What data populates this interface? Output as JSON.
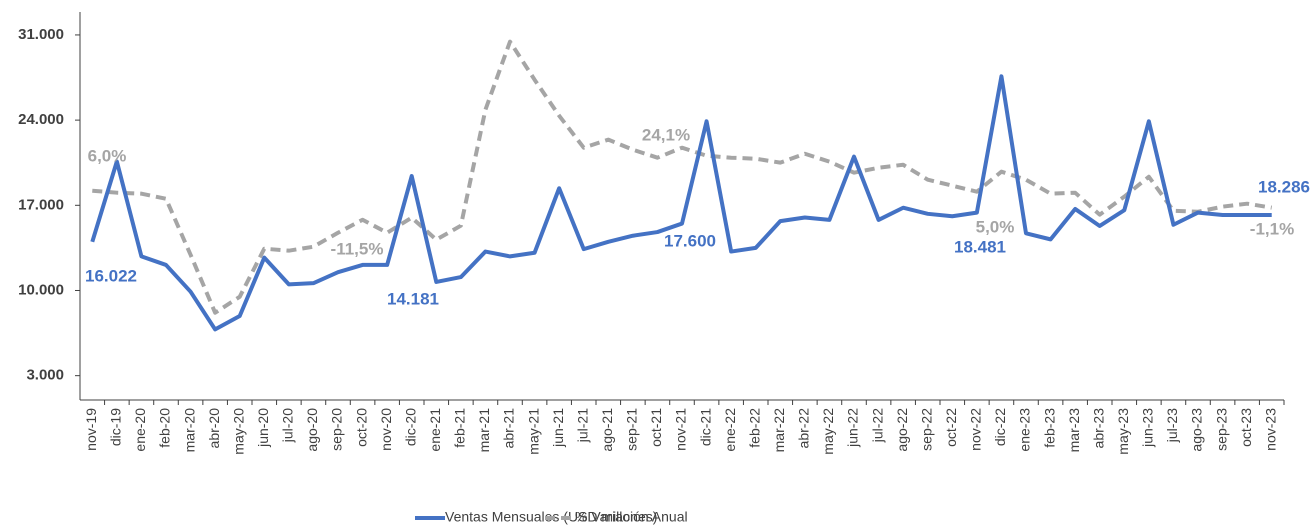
{
  "chart_data": {
    "type": "line",
    "categories": [
      "nov-19",
      "dic-19",
      "ene-20",
      "feb-20",
      "mar-20",
      "abr-20",
      "may-20",
      "jun-20",
      "jul-20",
      "ago-20",
      "sep-20",
      "oct-20",
      "nov-20",
      "dic-20",
      "ene-21",
      "feb-21",
      "mar-21",
      "abr-21",
      "may-21",
      "jun-21",
      "jul-21",
      "ago-21",
      "sep-21",
      "oct-21",
      "nov-21",
      "dic-21",
      "ene-22",
      "feb-22",
      "mar-22",
      "abr-22",
      "may-22",
      "jun-22",
      "jul-22",
      "ago-22",
      "sep-22",
      "oct-22",
      "nov-22",
      "dic-22",
      "ene-23",
      "feb-23",
      "mar-23",
      "abr-23",
      "may-23",
      "jun-23",
      "jul-23",
      "ago-23",
      "sep-23",
      "oct-23",
      "nov-23"
    ],
    "series": [
      {
        "name": "Ventas Mensuales (USD millones)",
        "color": "#4472c4",
        "dash": false,
        "values": [
          14000,
          20600,
          12800,
          12100,
          9900,
          6800,
          7900,
          12700,
          10500,
          10600,
          11500,
          12100,
          12100,
          19400,
          10700,
          11100,
          13200,
          12800,
          13100,
          18400,
          13400,
          14000,
          14500,
          14800,
          15500,
          23900,
          13200,
          13500,
          15700,
          16000,
          15800,
          21000,
          15800,
          16800,
          16300,
          16100,
          16400,
          27600,
          14700,
          14200,
          16700,
          15300,
          16600,
          23900,
          15400,
          16400,
          16200,
          16200,
          16200
        ]
      },
      {
        "name": "% Variación Anual",
        "color": "#a5a5a5",
        "dash": true,
        "axis": "y2",
        "values": [
          -10.7,
          -12.3,
          -13.1,
          -17.2,
          -62.5,
          -109.4,
          -96.5,
          -57.6,
          -59.2,
          -56.0,
          -44.7,
          -34.2,
          -44.7,
          -32.5,
          -50.3,
          -39.0,
          54.8,
          109.9,
          79.1,
          50.0,
          24.1,
          30.6,
          22.5,
          16.0,
          24.1,
          17.6,
          16.0,
          15.2,
          12.0,
          19.2,
          12.8,
          3.9,
          7.9,
          10.3,
          -1.8,
          -6.6,
          -11.5,
          4.7,
          -1.8,
          -13.1,
          -12.3,
          -30.1,
          -15.5,
          0.6,
          -26.9,
          -27.7,
          -23.6,
          -21.2,
          -24.4
        ]
      }
    ],
    "ylim": [
      1000,
      33000
    ],
    "yticks": [
      {
        "value": 3000,
        "label": "3.000"
      },
      {
        "value": 10000,
        "label": "10.000"
      },
      {
        "value": 17000,
        "label": "17.000"
      },
      {
        "value": 24000,
        "label": "24.000"
      },
      {
        "value": 31000,
        "label": "31.000"
      }
    ],
    "y2lim": [
      -180,
      135
    ],
    "grid": false,
    "legend": "bottom",
    "annotations": [
      "6,0%",
      "16.022",
      "-11,5%",
      "14.181",
      "24,1%",
      "17.600",
      "5,0%",
      "18.481",
      "18.286",
      "-1,1%"
    ]
  }
}
